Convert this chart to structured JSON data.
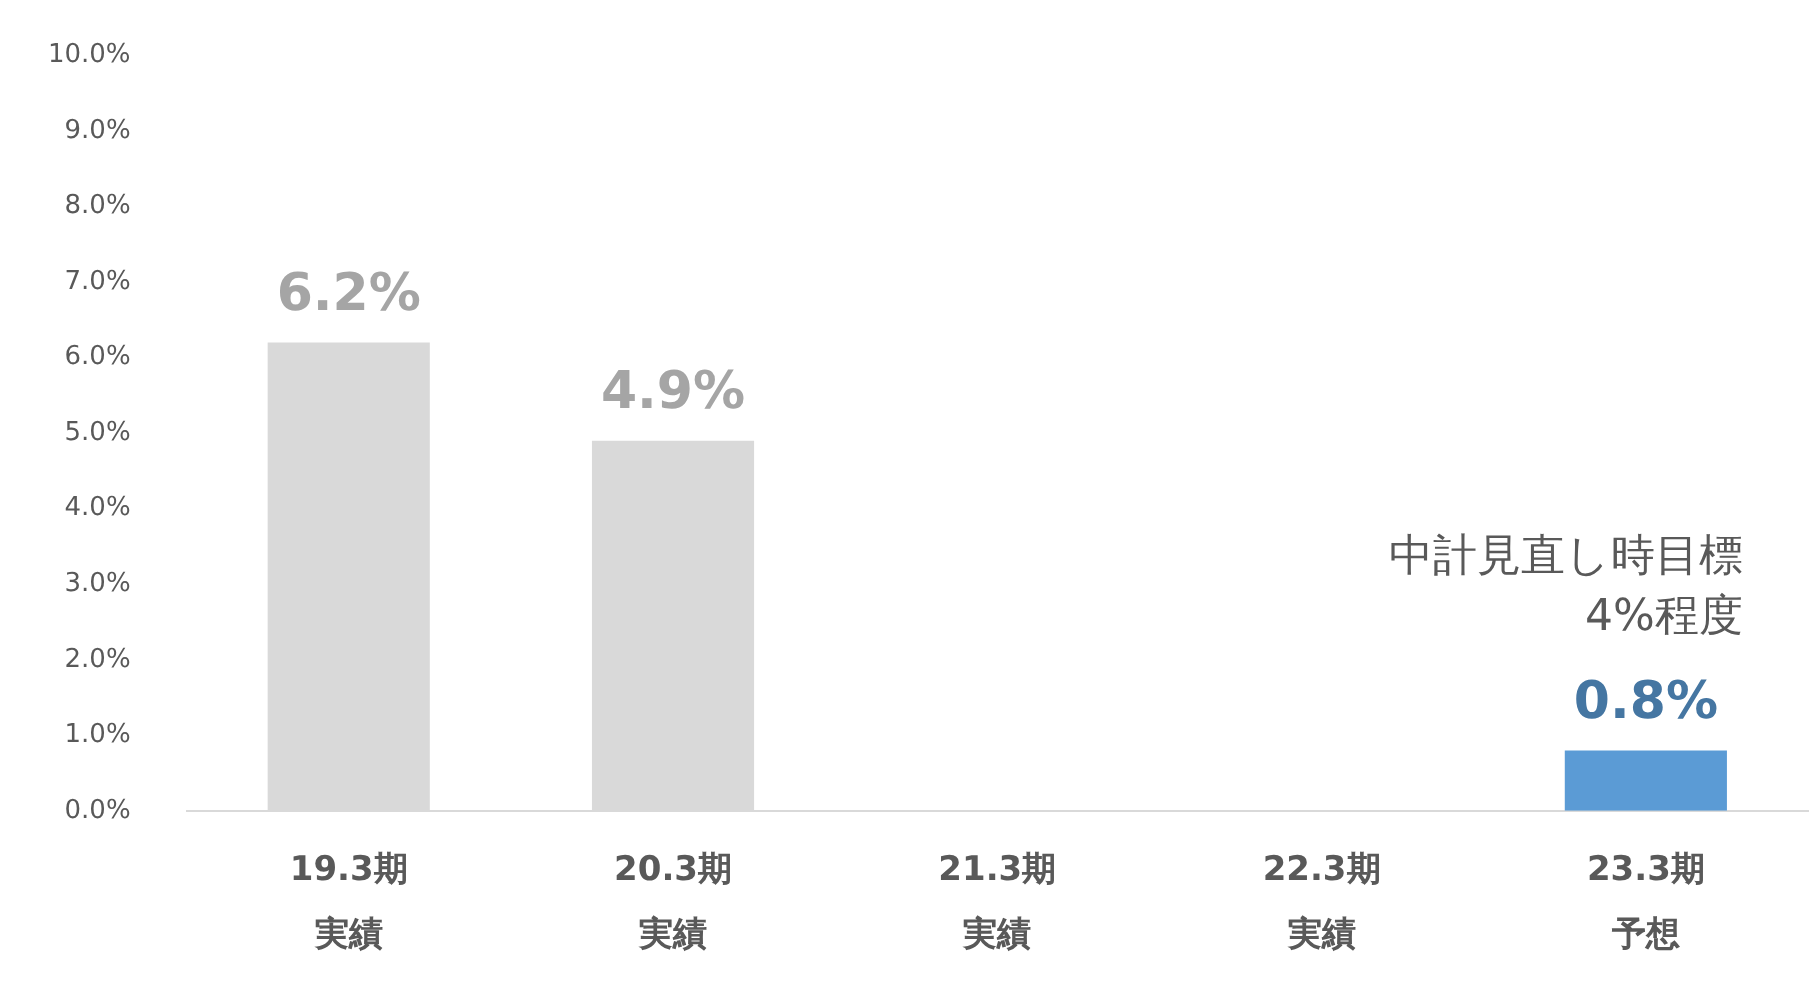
{
  "chart_data": {
    "type": "bar",
    "categories": [
      "19.3期実績",
      "20.3期実績",
      "21.3期実績",
      "22.3期実績",
      "23.3期予想"
    ],
    "values": [
      6.2,
      4.9,
      null,
      null,
      0.8
    ],
    "colors": [
      "#d9d9d9",
      "#d9d9d9",
      "#d9d9d9",
      "#d9d9d9",
      "#5b9bd5"
    ],
    "value_labels": [
      "6.2%",
      "4.9%",
      null,
      null,
      "0.8%"
    ],
    "ylim": [
      0,
      10
    ],
    "yticks": [
      {
        "value": 0,
        "label": "0.0%"
      },
      {
        "value": 1,
        "label": "1.0%"
      },
      {
        "value": 2,
        "label": "2.0%"
      },
      {
        "value": 3,
        "label": "3.0%"
      },
      {
        "value": 4,
        "label": "4.0%"
      },
      {
        "value": 5,
        "label": "5.0%"
      },
      {
        "value": 6,
        "label": "6.0%"
      },
      {
        "value": 7,
        "label": "7.0%"
      },
      {
        "value": 8,
        "label": "8.0%"
      },
      {
        "value": 9,
        "label": "9.0%"
      },
      {
        "value": 10,
        "label": "10.0%"
      }
    ],
    "annotations": [
      "中計見直し時目標\n4%程度"
    ],
    "grid": false,
    "legend": false
  }
}
